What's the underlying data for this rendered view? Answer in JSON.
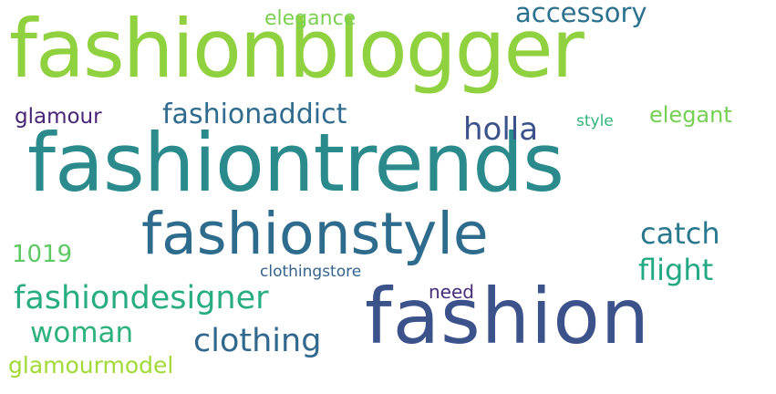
{
  "words": [
    {
      "id": "fashionblogger",
      "text": "fashionblogger",
      "color": "#8fd13f"
    },
    {
      "id": "fashiontrends",
      "text": "fashiontrends",
      "color": "#2a8a8c"
    },
    {
      "id": "fashionstyle",
      "text": "fashionstyle",
      "color": "#2e6c8e"
    },
    {
      "id": "fashion",
      "text": "fashion",
      "color": "#3b528b"
    },
    {
      "id": "accessory",
      "text": "accessory",
      "color": "#2c728e"
    },
    {
      "id": "elegance",
      "text": "elegance",
      "color": "#7ad151"
    },
    {
      "id": "fashionaddict",
      "text": "fashionaddict",
      "color": "#2f6b8e"
    },
    {
      "id": "holla",
      "text": "holla",
      "color": "#3b528b"
    },
    {
      "id": "glamour",
      "text": "glamour",
      "color": "#482576"
    },
    {
      "id": "elegant",
      "text": "elegant",
      "color": "#75d054"
    },
    {
      "id": "style",
      "text": "style",
      "color": "#31b57b"
    },
    {
      "id": "catch",
      "text": "catch",
      "color": "#2a788e"
    },
    {
      "id": "flight",
      "text": "flight",
      "color": "#22a884"
    },
    {
      "id": "1019",
      "text": "1019",
      "color": "#5ec962"
    },
    {
      "id": "clothingstore",
      "text": "clothingstore",
      "color": "#33638d"
    },
    {
      "id": "need",
      "text": "need",
      "color": "#472d7b"
    },
    {
      "id": "fashiondesigner",
      "text": "fashiondesigner",
      "color": "#27ad81"
    },
    {
      "id": "woman",
      "text": "woman",
      "color": "#2db27d"
    },
    {
      "id": "clothing",
      "text": "clothing",
      "color": "#31688e"
    },
    {
      "id": "glamourmodel",
      "text": "glamourmodel",
      "color": "#a2da37"
    }
  ]
}
